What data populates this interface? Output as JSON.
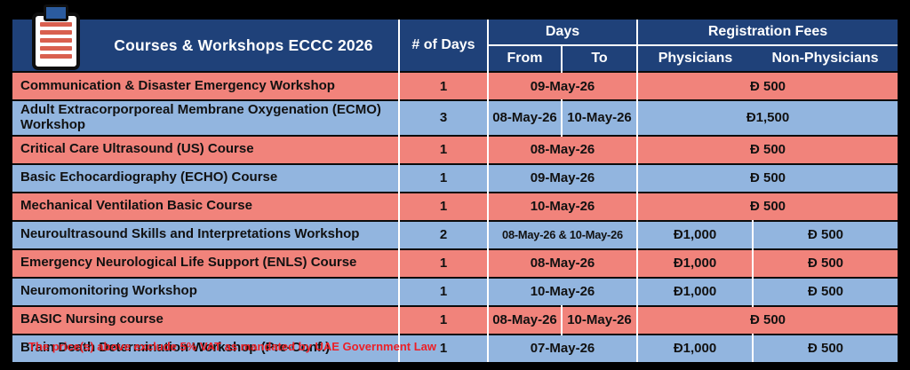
{
  "colors": {
    "header_bg": "#1F4179",
    "row_pink": "#F1837B",
    "row_blue": "#92B5DF",
    "note_red": "#EC2027",
    "icon_clip_blue": "#2B5B9E",
    "icon_line_red": "#D9604F",
    "header_text": "#FFFFFF",
    "body_text": "#111111",
    "background": "#000000"
  },
  "header": {
    "title": "Courses & Workshops ECCC 2026",
    "icon": "clipboard-icon",
    "columns": {
      "days_count": "# of Days",
      "days_group": "Days",
      "from": "From",
      "to": "To",
      "fees_group": "Registration Fees",
      "physicians": "Physicians",
      "non_physicians": "Non-Physicians"
    }
  },
  "rows": [
    {
      "course": "Communication & Disaster Emergency Workshop",
      "days": "1",
      "date_merged": "09-May-26",
      "fee_merged": "Ð 500"
    },
    {
      "course": "Adult Extracorporporeal Membrane Oxygenation (ECMO) Workshop",
      "days": "3",
      "date_from": "08-May-26",
      "date_to": "10-May-26",
      "fee_merged": "Ð1,500"
    },
    {
      "course": "Critical Care Ultrasound (US) Course",
      "days": "1",
      "date_merged": "08-May-26",
      "fee_merged": "Ð 500"
    },
    {
      "course": "Basic Echocardiography (ECHO) Course",
      "days": "1",
      "date_merged": "09-May-26",
      "fee_merged": "Ð 500"
    },
    {
      "course": "Mechanical Ventilation Basic Course",
      "days": "1",
      "date_merged": "10-May-26",
      "fee_merged": "Ð 500"
    },
    {
      "course": "Neuroultrasound Skills and Interpretations Workshop",
      "days": "2",
      "date_merged": "08-May-26 & 10-May-26",
      "fee_physicians": "Ð1,000",
      "fee_non_physicians": "Ð 500"
    },
    {
      "course": "Emergency Neurological Life Support (ENLS) Course",
      "days": "1",
      "date_merged": "08-May-26",
      "fee_physicians": "Ð1,000",
      "fee_non_physicians": "Ð 500"
    },
    {
      "course": "Neuromonitoring Workshop",
      "days": "1",
      "date_merged": "10-May-26",
      "fee_physicians": "Ð1,000",
      "fee_non_physicians": "Ð 500"
    },
    {
      "course": "BASIC Nursing course",
      "days": "1",
      "date_from": "08-May-26",
      "date_to": "10-May-26",
      "fee_merged": "Ð 500"
    },
    {
      "course": "Brain Death Determination Workshop (Pre-Conf.)",
      "days": "1",
      "date_merged": "07-May-26",
      "fee_physicians": "Ð1,000",
      "fee_non_physicians": "Ð 500"
    }
  ],
  "footer": {
    "note": "The price(s) above exclude 5% VAT as mandated by UAE Government Law"
  }
}
